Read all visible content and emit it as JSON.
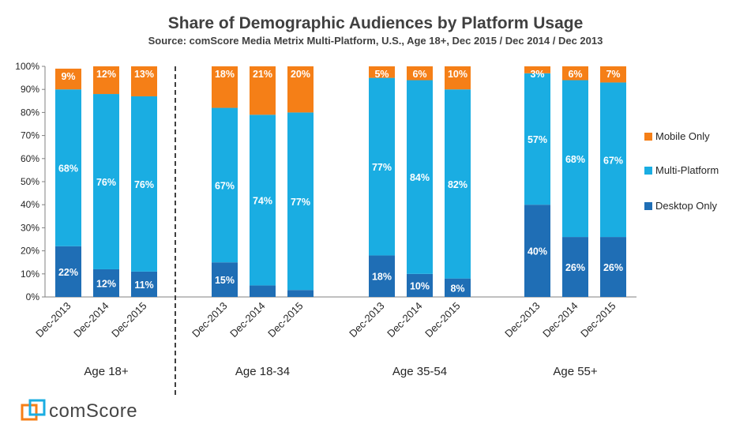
{
  "chart_data": {
    "type": "bar",
    "stacked": true,
    "title": "Share of Demographic Audiences by Platform Usage",
    "subtitle": "Source: comScore Media Metrix Multi-Platform, U.S., Age 18+, Dec 2015 / Dec 2014 / Dec 2013",
    "ylim": [
      0,
      100
    ],
    "yticks": [
      "0%",
      "10%",
      "20%",
      "30%",
      "40%",
      "50%",
      "60%",
      "70%",
      "80%",
      "90%",
      "100%"
    ],
    "groups": [
      {
        "label": "Age 18+",
        "categories": [
          "Dec-2013",
          "Dec-2014",
          "Dec-2015"
        ]
      },
      {
        "label": "Age 18-34",
        "categories": [
          "Dec-2013",
          "Dec-2014",
          "Dec-2015"
        ]
      },
      {
        "label": "Age 35-54",
        "categories": [
          "Dec-2013",
          "Dec-2014",
          "Dec-2015"
        ]
      },
      {
        "label": "Age 55+",
        "categories": [
          "Dec-2013",
          "Dec-2014",
          "Dec-2015"
        ]
      }
    ],
    "series": [
      {
        "name": "Desktop Only",
        "color": "#1F6EB5",
        "values": [
          22,
          12,
          11,
          15,
          5,
          3,
          18,
          10,
          8,
          40,
          26,
          26
        ],
        "labels": [
          "22%",
          "12%",
          "11%",
          "15%",
          "5%",
          "3%",
          "18%",
          "10%",
          "8%",
          "40%",
          "26%",
          "26%"
        ]
      },
      {
        "name": "Multi-Platform",
        "color": "#1AADE2",
        "values": [
          68,
          76,
          76,
          67,
          74,
          77,
          77,
          84,
          82,
          57,
          68,
          67
        ],
        "labels": [
          "68%",
          "76%",
          "76%",
          "67%",
          "74%",
          "77%",
          "77%",
          "84%",
          "82%",
          "57%",
          "68%",
          "67%"
        ]
      },
      {
        "name": "Mobile Only",
        "color": "#F57F17",
        "values": [
          9,
          12,
          13,
          18,
          21,
          20,
          5,
          6,
          10,
          3,
          6,
          7
        ],
        "labels": [
          "9%",
          "12%",
          "13%",
          "18%",
          "21%",
          "20%",
          "5%",
          "6%",
          "10%",
          "3%",
          "6%",
          "7%"
        ]
      }
    ],
    "legend": [
      "Mobile Only",
      "Multi-Platform",
      "Desktop Only"
    ],
    "legend_position": "right",
    "grid": false
  },
  "logo": {
    "text": "comScore",
    "colors": [
      "#F57F17",
      "#1AADE2"
    ]
  }
}
